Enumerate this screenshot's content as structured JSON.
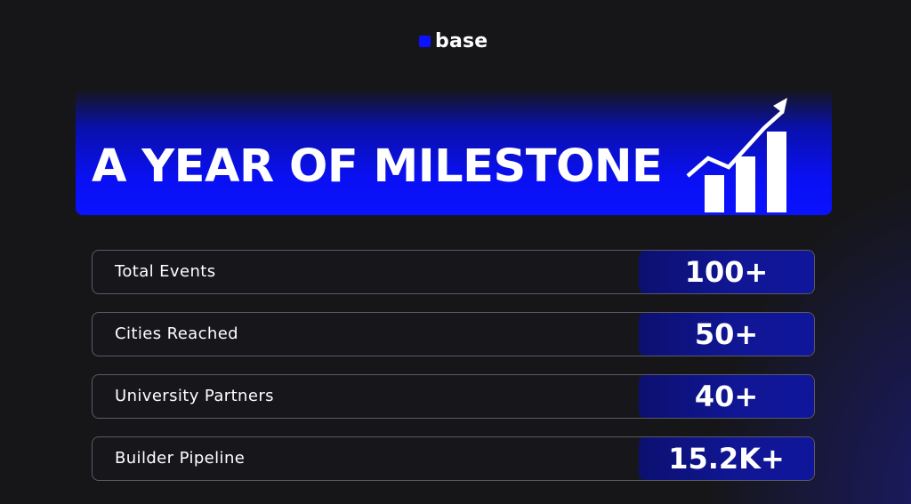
{
  "logo": {
    "text": "base",
    "accent_color": "#0a12ff"
  },
  "banner": {
    "title": "A YEAR OF MILESTONE",
    "icon": "growth-chart-icon",
    "color": "#0a12ff"
  },
  "stats": [
    {
      "label": "Total Events",
      "value": "100+"
    },
    {
      "label": "Cities Reached",
      "value": "50+"
    },
    {
      "label": "University Partners",
      "value": "40+"
    },
    {
      "label": "Builder Pipeline",
      "value": "15.2K+"
    }
  ]
}
